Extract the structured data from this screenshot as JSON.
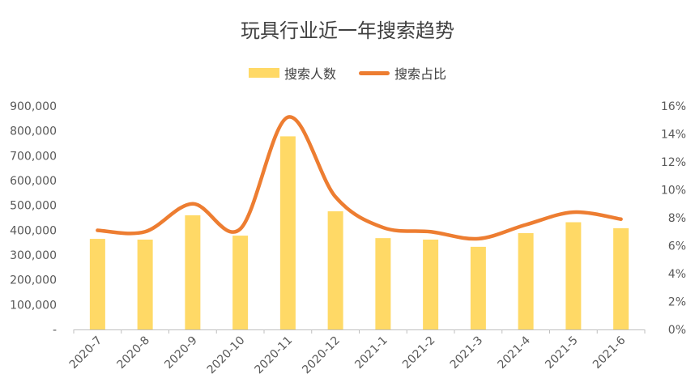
{
  "chart_data": {
    "type": "bar",
    "title": "玩具行业近一年搜索趋势",
    "categories": [
      "2020-7",
      "2020-8",
      "2020-9",
      "2020-10",
      "2020-11",
      "2020-12",
      "2021-1",
      "2021-2",
      "2021-3",
      "2021-4",
      "2021-5",
      "2021-6"
    ],
    "series": [
      {
        "name": "搜索人数",
        "type": "bar",
        "axis": "left",
        "values": [
          365000,
          362000,
          460000,
          378000,
          778000,
          476000,
          368000,
          362000,
          333000,
          388000,
          432000,
          408000
        ]
      },
      {
        "name": "搜索占比",
        "type": "line",
        "smooth": true,
        "axis": "right",
        "values": [
          0.071,
          0.07,
          0.09,
          0.072,
          0.152,
          0.095,
          0.073,
          0.07,
          0.065,
          0.075,
          0.084,
          0.079
        ]
      }
    ],
    "left_axis": {
      "ylim": [
        0,
        900000
      ],
      "ticks": [
        "-",
        "100,000",
        "200,000",
        "300,000",
        "400,000",
        "500,000",
        "600,000",
        "700,000",
        "800,000",
        "900,000"
      ]
    },
    "right_axis": {
      "ylim": [
        0,
        0.16
      ],
      "ticks": [
        "0%",
        "2%",
        "4%",
        "6%",
        "8%",
        "10%",
        "12%",
        "14%",
        "16%"
      ]
    },
    "legend_position": "top",
    "grid": false,
    "colors": {
      "bar": "#FFD966",
      "line": "#ED7D31"
    }
  }
}
